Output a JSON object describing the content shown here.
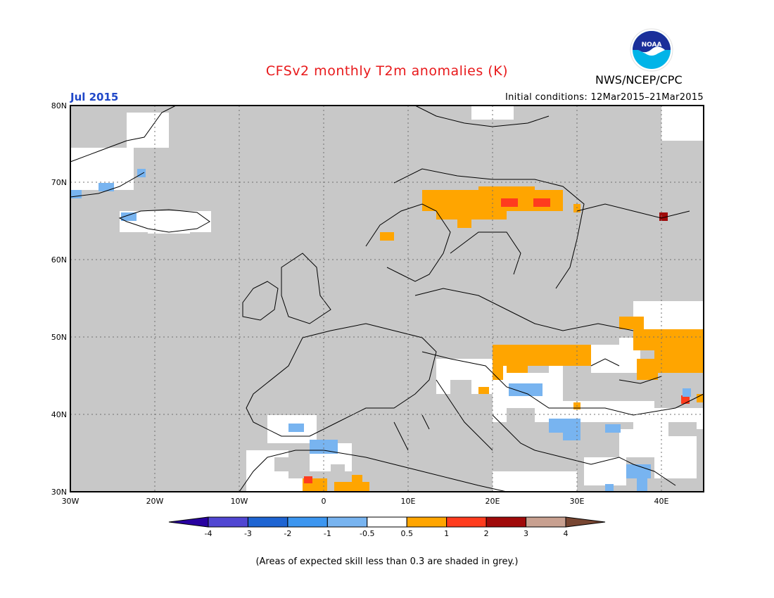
{
  "header": {
    "title": "CFSv2 monthly T2m anomalies (K)",
    "month": "Jul 2015",
    "initial_conditions": "Initial conditions: 12Mar2015–21Mar2015",
    "agency": "NWS/NCEP/CPC",
    "logo_text": "NOAA"
  },
  "map": {
    "lat_labels": [
      "30N",
      "40N",
      "50N",
      "60N",
      "70N",
      "80N"
    ],
    "lon_labels": [
      "30W",
      "20W",
      "10W",
      "0",
      "10E",
      "20E",
      "30E",
      "40E"
    ],
    "colors": {
      "land_low_skill": "#c8c8c8",
      "near_normal": "#ffffff",
      "plus_0_5_1": "#ffa500",
      "plus_1_2": "#ff3c1e",
      "plus_2_3": "#a00a0a",
      "minus_0_5_1": "#78b4f0"
    }
  },
  "legend": {
    "tick_labels": [
      "-4",
      "-3",
      "-2",
      "-1",
      "-0.5",
      "0.5",
      "1",
      "2",
      "3",
      "4"
    ],
    "colors": [
      "#2800a0",
      "#5046d2",
      "#1e64d2",
      "#3c96f0",
      "#78b4f0",
      "#ffffff",
      "#ffa500",
      "#ff3c1e",
      "#a00a0a",
      "#c8a090",
      "#784632"
    ]
  },
  "footer": {
    "note": "(Areas of expected skill less than 0.3 are shaded in grey.)"
  }
}
